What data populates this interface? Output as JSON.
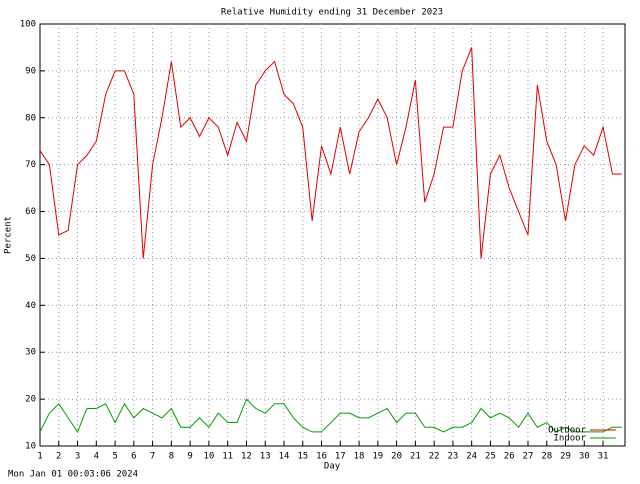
{
  "chart_data": {
    "type": "line",
    "title": "Relative Humidity ending 31 December 2023",
    "xlabel": "Day",
    "ylabel": "Percent",
    "footer": "Mon Jan 01 00:03:06 2024",
    "x": [
      1,
      1.5,
      2,
      2.5,
      3,
      3.5,
      4,
      4.5,
      5,
      5.5,
      6,
      6.5,
      7,
      7.5,
      8,
      8.5,
      9,
      9.5,
      10,
      10.5,
      11,
      11.5,
      12,
      12.5,
      13,
      13.5,
      14,
      14.5,
      15,
      15.5,
      16,
      16.5,
      17,
      17.5,
      18,
      18.5,
      19,
      19.5,
      20,
      20.5,
      21,
      21.5,
      22,
      22.5,
      23,
      23.5,
      24,
      24.5,
      25,
      25.5,
      26,
      26.5,
      27,
      27.5,
      28,
      28.5,
      29,
      29.5,
      30,
      30.5,
      31,
      31.5,
      32
    ],
    "series": [
      {
        "name": "Outdoor",
        "color": "#e00000",
        "values": [
          73,
          70,
          55,
          56,
          70,
          72,
          75,
          85,
          90,
          90,
          85,
          50,
          70,
          80,
          92,
          78,
          80,
          76,
          80,
          78,
          72,
          79,
          75,
          87,
          90,
          92,
          85,
          83,
          78,
          58,
          74,
          68,
          78,
          68,
          77,
          80,
          84,
          80,
          70,
          78,
          88,
          62,
          68,
          78,
          78,
          90,
          95,
          50,
          68,
          72,
          65,
          60,
          55,
          87,
          75,
          70,
          58,
          70,
          74,
          72,
          78,
          68,
          68
        ]
      },
      {
        "name": "Indoor",
        "color": "#00a000",
        "values": [
          13,
          17,
          19,
          16,
          13,
          18,
          18,
          19,
          15,
          19,
          16,
          18,
          17,
          16,
          18,
          14,
          14,
          16,
          14,
          17,
          15,
          15,
          20,
          18,
          17,
          19,
          19,
          16,
          14,
          13,
          13,
          15,
          17,
          17,
          16,
          16,
          17,
          18,
          15,
          17,
          17,
          14,
          14,
          13,
          14,
          14,
          15,
          18,
          16,
          17,
          16,
          14,
          17,
          14,
          15,
          13,
          14,
          13,
          13,
          13,
          13,
          14,
          14
        ]
      }
    ],
    "xlim": [
      1,
      32.17
    ],
    "xticks": [
      1,
      2,
      3,
      4,
      5,
      6,
      7,
      8,
      9,
      10,
      11,
      12,
      13,
      14,
      15,
      16,
      17,
      18,
      19,
      20,
      21,
      22,
      23,
      24,
      25,
      26,
      27,
      28,
      29,
      30,
      31
    ],
    "ylim": [
      10,
      100
    ],
    "yticks": [
      10,
      20,
      30,
      40,
      50,
      60,
      70,
      80,
      90,
      100
    ],
    "grid": true,
    "legend": "lower right"
  }
}
